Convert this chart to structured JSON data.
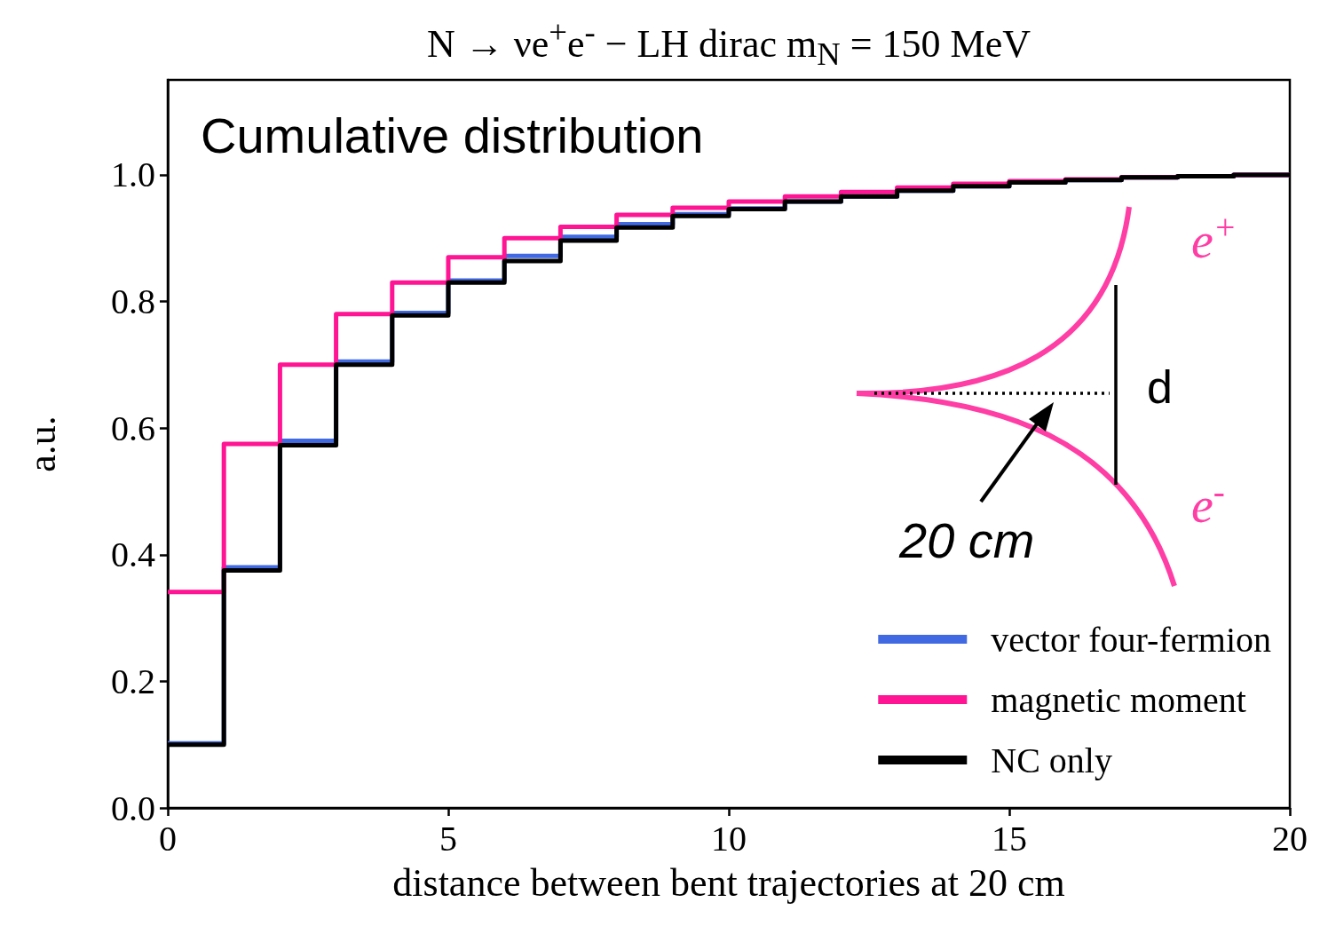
{
  "chart_data": {
    "type": "histogram",
    "title": "N → νe$^{+}$e$^{-}$ − LH dirac   m$_{N}$ = 150 MeV",
    "xlabel": "distance between bent trajectories at 20 cm",
    "ylabel": "a.u.",
    "bins": [
      0,
      1,
      2,
      3,
      4,
      5,
      6,
      7,
      8,
      9,
      10,
      11,
      12,
      13,
      14,
      15,
      16,
      17,
      18,
      19,
      20
    ],
    "series": [
      {
        "name": "vector four-fermion",
        "color": "#4169e1",
        "values": [
          0.102,
          0.38,
          0.58,
          0.705,
          0.782,
          0.833,
          0.872,
          0.902,
          0.922,
          0.938,
          0.947,
          0.958,
          0.966,
          0.975,
          0.982,
          0.988,
          0.992,
          0.996,
          0.998,
          1.0
        ]
      },
      {
        "name": "magnetic moment",
        "color": "#ff1493",
        "values": [
          0.341,
          0.575,
          0.7,
          0.78,
          0.83,
          0.87,
          0.9,
          0.918,
          0.937,
          0.948,
          0.958,
          0.966,
          0.973,
          0.98,
          0.986,
          0.99,
          0.993,
          0.996,
          0.998,
          1.0
        ]
      },
      {
        "name": "NC only",
        "color": "#000000",
        "values": [
          0.1,
          0.375,
          0.573,
          0.7,
          0.778,
          0.83,
          0.864,
          0.896,
          0.917,
          0.935,
          0.946,
          0.958,
          0.966,
          0.975,
          0.982,
          0.988,
          0.992,
          0.996,
          0.998,
          1.0
        ]
      }
    ],
    "xlim": [
      0,
      20
    ],
    "xticks": [
      0,
      5,
      10,
      15,
      20
    ],
    "ylim": [
      0,
      1.15
    ],
    "yticks": [
      {
        "value": 0,
        "label": "0.0"
      },
      {
        "value": 0.2,
        "label": "0.2"
      },
      {
        "value": 0.4,
        "label": "0.4"
      },
      {
        "value": 0.6,
        "label": "0.6"
      },
      {
        "value": 0.8,
        "label": "0.8"
      },
      {
        "value": 1,
        "label": "1.0"
      }
    ],
    "grid": false,
    "legend": "bottom right",
    "annotations": [
      "Cumulative distribution",
      "d",
      "e$^{+}$",
      "e$^{-}$",
      "20 cm"
    ]
  }
}
